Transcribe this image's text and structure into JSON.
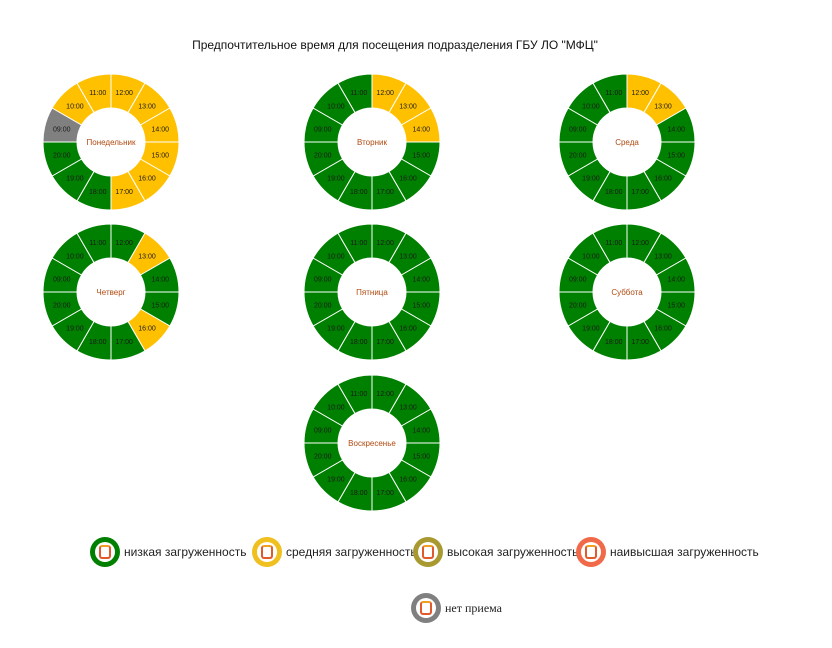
{
  "title": "Предпочтительное время для посещения подразделения ГБУ ЛО \"МФЦ\"",
  "colors": {
    "low": "#008000",
    "medium": "#ffc000",
    "high": "#a89a30",
    "highest": "#f06040",
    "closed": "#808080"
  },
  "hours": [
    "09:00",
    "10:00",
    "11:00",
    "12:00",
    "13:00",
    "14:00",
    "15:00",
    "16:00",
    "17:00",
    "18:00",
    "19:00",
    "20:00"
  ],
  "chart_data": [
    {
      "type": "donut",
      "day": "Понедельник",
      "segments": [
        "closed",
        "medium",
        "medium",
        "medium",
        "medium",
        "medium",
        "medium",
        "medium",
        "medium",
        "low",
        "low",
        "low"
      ]
    },
    {
      "type": "donut",
      "day": "Вторник",
      "segments": [
        "low",
        "low",
        "low",
        "medium",
        "medium",
        "medium",
        "low",
        "low",
        "low",
        "low",
        "low",
        "low"
      ]
    },
    {
      "type": "donut",
      "day": "Среда",
      "segments": [
        "low",
        "low",
        "low",
        "medium",
        "medium",
        "low",
        "low",
        "low",
        "low",
        "low",
        "low",
        "low"
      ]
    },
    {
      "type": "donut",
      "day": "Четверг",
      "segments": [
        "low",
        "low",
        "low",
        "low",
        "medium",
        "low",
        "low",
        "medium",
        "low",
        "low",
        "low",
        "low"
      ]
    },
    {
      "type": "donut",
      "day": "Пятница",
      "segments": [
        "low",
        "low",
        "low",
        "low",
        "low",
        "low",
        "low",
        "low",
        "low",
        "low",
        "low",
        "low"
      ]
    },
    {
      "type": "donut",
      "day": "Суббота",
      "segments": [
        "low",
        "low",
        "low",
        "low",
        "low",
        "low",
        "low",
        "low",
        "low",
        "low",
        "low",
        "low"
      ]
    },
    {
      "type": "donut",
      "day": "Воскресенье",
      "segments": [
        "low",
        "low",
        "low",
        "low",
        "low",
        "low",
        "low",
        "low",
        "low",
        "low",
        "low",
        "low"
      ]
    }
  ],
  "legend": [
    {
      "key": "low",
      "label": "низкая загруженность"
    },
    {
      "key": "medium",
      "label": "средняя загруженность"
    },
    {
      "key": "high",
      "label": "высокая загруженность"
    },
    {
      "key": "highest",
      "label": "наивысшая загруженность"
    },
    {
      "key": "closed",
      "label": "нет приема"
    }
  ]
}
